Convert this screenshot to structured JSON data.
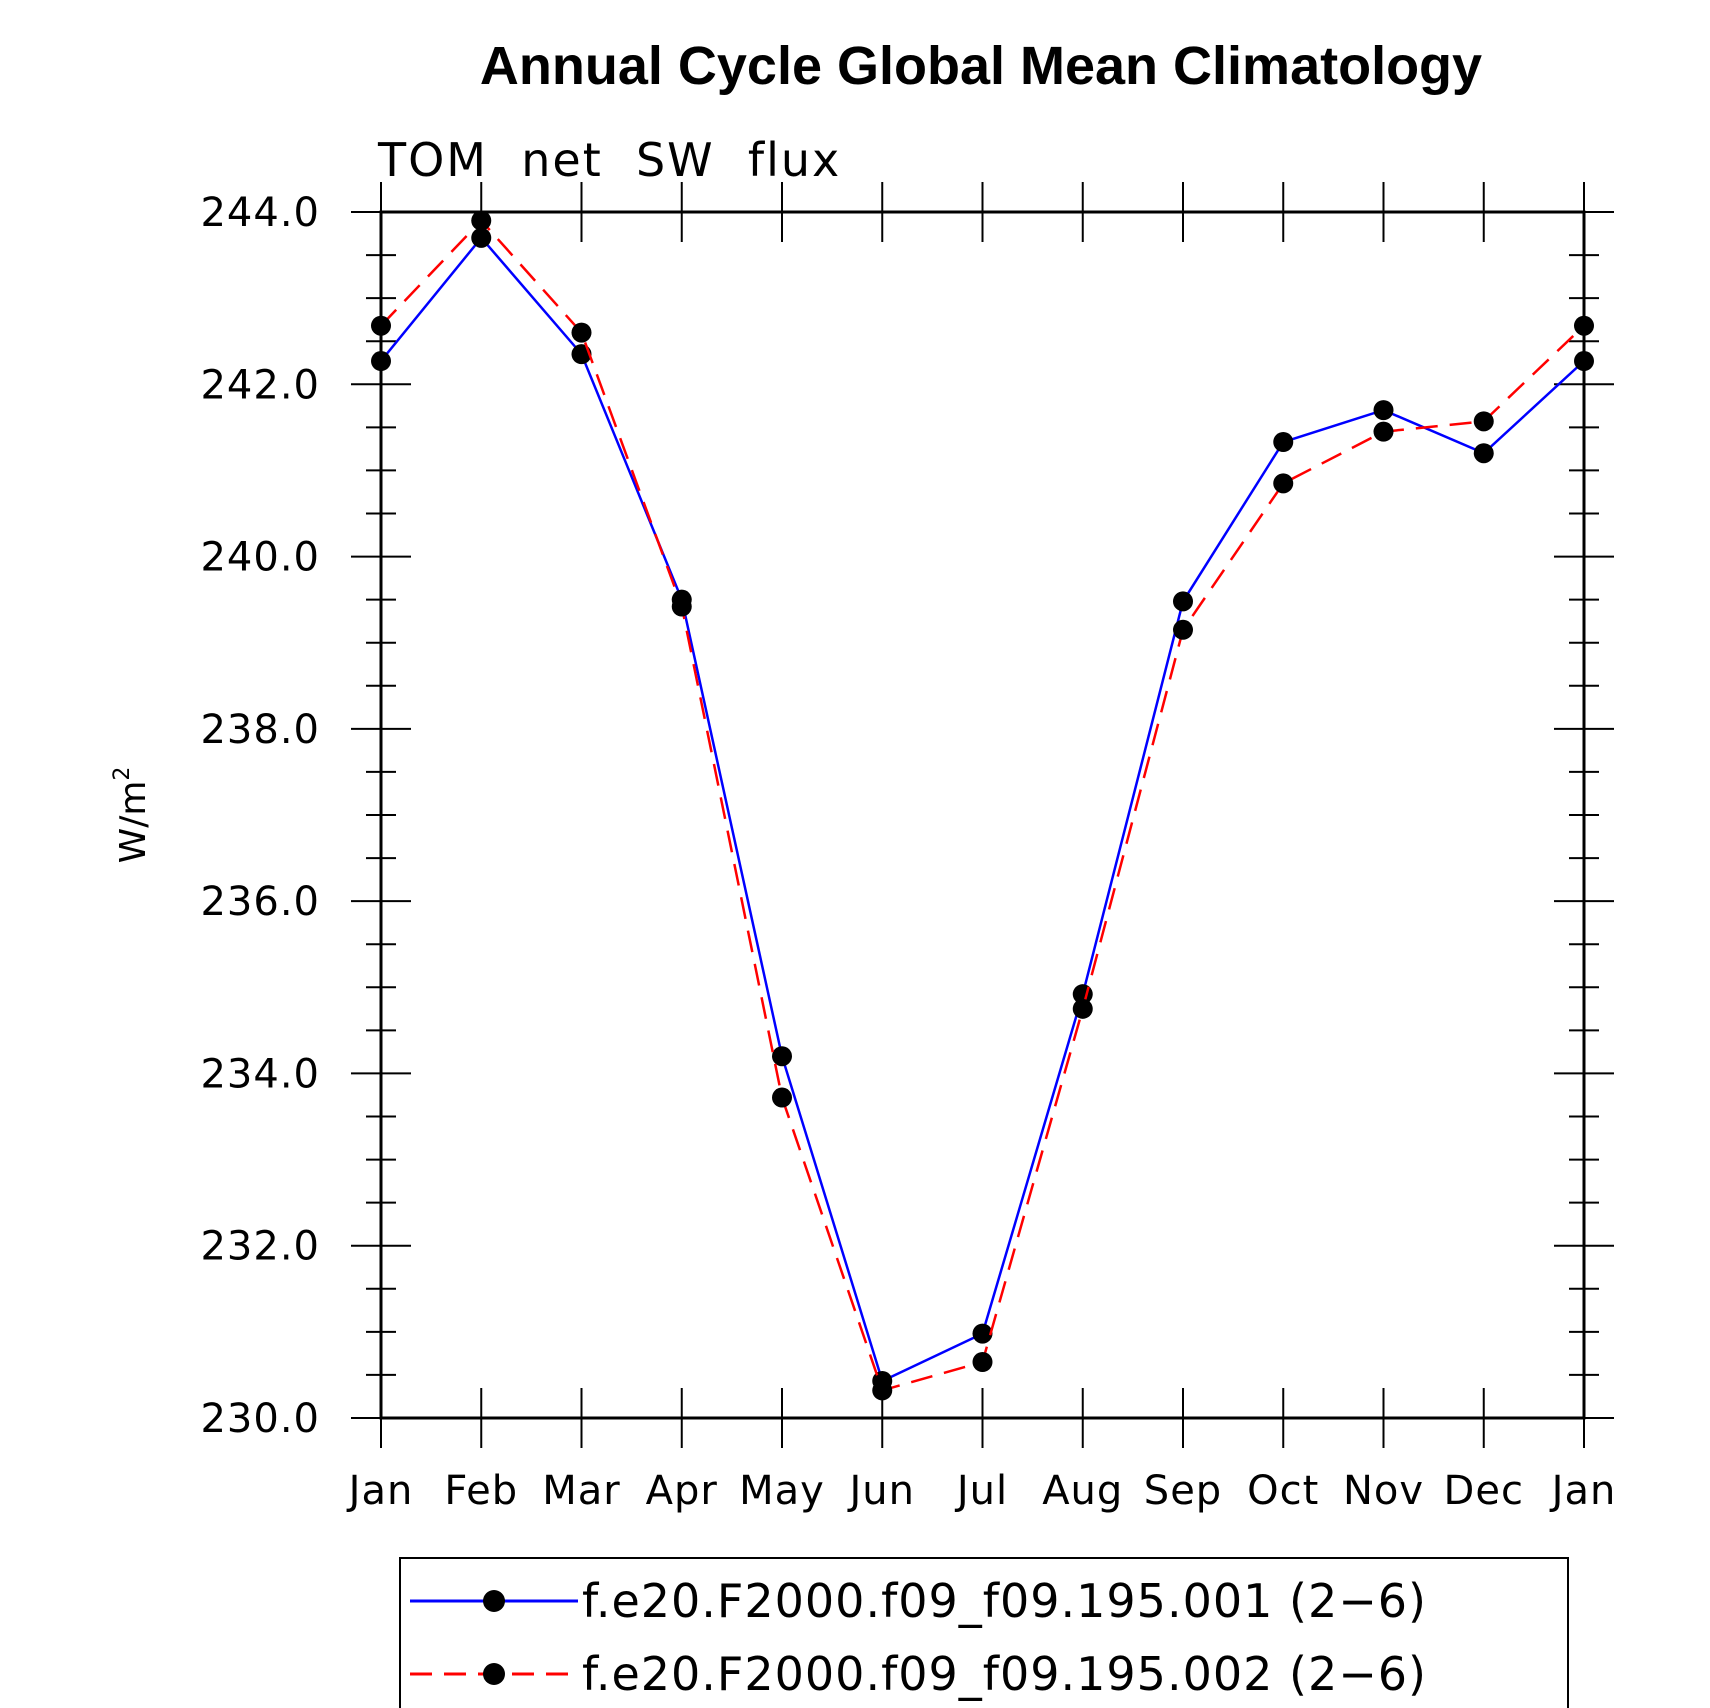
{
  "chart_data": {
    "type": "line",
    "title": "Annual Cycle Global Mean Climatology",
    "subtitle": "TOM  net  SW  flux",
    "ylabel": "W/m",
    "ylabel_sup": "2",
    "xlabel": "",
    "ylim": [
      230.0,
      244.0
    ],
    "ytick_values": [
      230,
      232,
      234,
      236,
      238,
      240,
      242,
      244
    ],
    "ytick_labels": [
      "230.0",
      "232.0",
      "234.0",
      "236.0",
      "238.0",
      "240.0",
      "242.0",
      "244.0"
    ],
    "categories": [
      "Jan",
      "Feb",
      "Mar",
      "Apr",
      "May",
      "Jun",
      "Jul",
      "Aug",
      "Sep",
      "Oct",
      "Nov",
      "Dec",
      "Jan"
    ],
    "grid": false,
    "legend_position": "bottom",
    "series": [
      {
        "name": "f.e20.F2000.f09_f09.195.001 (2−6)",
        "color": "#0000ff",
        "dash": "solid",
        "marker": "filled-circle",
        "values": [
          242.27,
          243.7,
          242.35,
          239.5,
          234.2,
          230.43,
          230.98,
          234.92,
          239.48,
          241.33,
          241.7,
          241.2,
          242.27
        ]
      },
      {
        "name": "f.e20.F2000.f09_f09.195.002 (2−6)",
        "color": "#ff0000",
        "dash": "dashed",
        "marker": "filled-circle",
        "values": [
          242.68,
          243.9,
          242.6,
          239.42,
          233.72,
          230.32,
          230.65,
          234.75,
          239.15,
          240.85,
          241.45,
          241.57,
          242.68
        ]
      }
    ]
  }
}
